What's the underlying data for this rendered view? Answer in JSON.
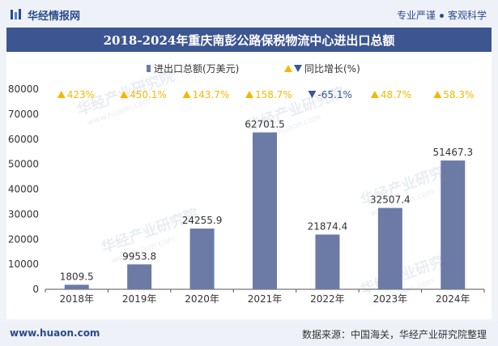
{
  "header": {
    "brand": "华经情报网",
    "tagline_left": "专业严谨",
    "tagline_right": "客观科学"
  },
  "footer": {
    "url": "www.huaon.com",
    "source": "数据来源：中国海关，华经产业研究院整理"
  },
  "watermark": "华经产业研究院",
  "watermark_url": "www.huaon.com",
  "colors": {
    "bar": "#6b7ba6",
    "title_bg": "#3d5591",
    "up": "#f5b800",
    "down": "#3d5591"
  },
  "chart_data": {
    "type": "bar",
    "title": "2018-2024年重庆南彭公路保税物流中心进出口总额",
    "categories": [
      "2018年",
      "2019年",
      "2020年",
      "2021年",
      "2022年",
      "2023年",
      "2024年"
    ],
    "series": [
      {
        "name": "进出口总额(万美元)",
        "values": [
          1809.5,
          9953.8,
          24255.9,
          62701.5,
          21874.4,
          32507.4,
          51467.3
        ],
        "labels": [
          "1809.5",
          "9953.8",
          "24255.9",
          "62701.5",
          "21874.4",
          "32507.4",
          "51467.3"
        ]
      },
      {
        "name": "同比增长(%)",
        "values": [
          423,
          450.1,
          143.7,
          158.7,
          -65.1,
          48.7,
          58.3
        ],
        "labels": [
          "423%",
          "450.1%",
          "143.7%",
          "158.7%",
          "-65.1%",
          "48.7%",
          "58.3%"
        ]
      }
    ],
    "ylim": [
      0,
      80000
    ],
    "yticks": [
      "0",
      "10000",
      "20000",
      "30000",
      "40000",
      "50000",
      "60000",
      "70000",
      "80000"
    ],
    "legend_position": "top-center",
    "grid": false
  }
}
